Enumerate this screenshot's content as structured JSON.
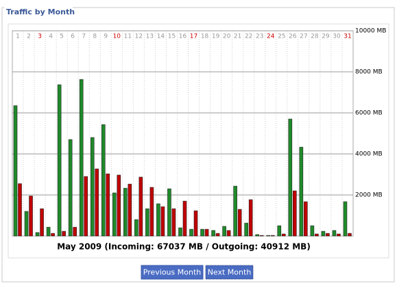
{
  "chart_data": {
    "type": "bar",
    "title": "Traffic by Month",
    "subtitle": "May 2009 (Incoming: 67037 MB / Outgoing: 40912 MB)",
    "categories": [
      "1",
      "2",
      "3",
      "4",
      "5",
      "6",
      "7",
      "8",
      "9",
      "10",
      "11",
      "12",
      "13",
      "14",
      "15",
      "16",
      "17",
      "18",
      "19",
      "20",
      "21",
      "22",
      "23",
      "24",
      "25",
      "26",
      "27",
      "28",
      "29",
      "30",
      "31"
    ],
    "category_colors": [
      "#999",
      "#999",
      "#cc0000",
      "#999",
      "#999",
      "#999",
      "#999",
      "#999",
      "#999",
      "#cc0000",
      "#999",
      "#999",
      "#999",
      "#999",
      "#999",
      "#999",
      "#cc0000",
      "#999",
      "#999",
      "#999",
      "#999",
      "#999",
      "#999",
      "#cc0000",
      "#999",
      "#999",
      "#999",
      "#999",
      "#999",
      "#999",
      "#cc0000"
    ],
    "series": [
      {
        "color": "#1f8a2a",
        "values": [
          6350,
          1200,
          170,
          430,
          7370,
          4700,
          7630,
          4800,
          5430,
          2100,
          2330,
          800,
          1330,
          1570,
          2300,
          400,
          330,
          330,
          270,
          470,
          2430,
          630,
          70,
          30,
          500,
          5700,
          4330,
          500,
          230,
          270,
          1670
        ]
      },
      {
        "color": "#c00000",
        "values": [
          2550,
          1950,
          1330,
          130,
          230,
          430,
          2900,
          3270,
          3030,
          2970,
          2530,
          2870,
          2370,
          1430,
          1330,
          1700,
          1230,
          330,
          130,
          270,
          1300,
          1770,
          30,
          30,
          100,
          2200,
          1670,
          100,
          130,
          100,
          130
        ]
      }
    ],
    "ylim": [
      0,
      10000
    ],
    "yticks": [
      {
        "value": 2000,
        "label": "2000 MB"
      },
      {
        "value": 4000,
        "label": "4000 MB"
      },
      {
        "value": 6000,
        "label": "6000 MB"
      },
      {
        "value": 8000,
        "label": "8000 MB"
      },
      {
        "value": 10000,
        "label": "10000 MB"
      }
    ],
    "grid": true
  },
  "buttons": [
    "Previous Month",
    "Next Month"
  ]
}
